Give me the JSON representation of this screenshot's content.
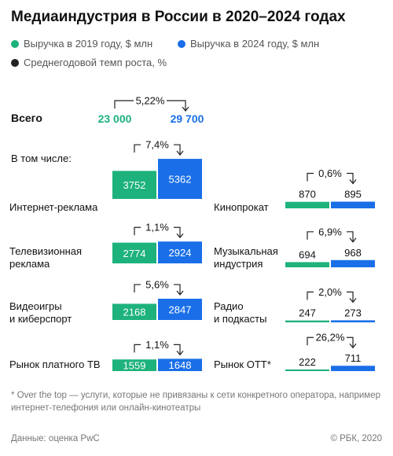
{
  "chart_data": {
    "type": "paired-bar",
    "title": "Медиаиндустрия в России в 2020–2024 годах",
    "subheading": "В том числе:",
    "categories": [
      "Интернет-реклама",
      "Телевизионная\nреклама",
      "Видеоигры\nи киберспорт",
      "Рынок платного ТВ",
      "Кинопрокат",
      "Музыкальная\nиндустрия",
      "Радио\nи подкасты",
      "Рынок OTT*"
    ],
    "series": [
      {
        "name": "Выручка в 2019 году, $ млн",
        "color": "#1db27c",
        "values": [
          3752,
          2774,
          2168,
          1559,
          870,
          694,
          247,
          222
        ]
      },
      {
        "name": "Выручка в 2024 году, $ млн",
        "color": "#1a6fe8",
        "values": [
          5362,
          2924,
          2847,
          1648,
          895,
          968,
          273,
          711
        ]
      }
    ],
    "growth": {
      "name": "Среднегодовой темп роста, %",
      "color": "#222222",
      "values": [
        7.4,
        1.1,
        5.6,
        1.1,
        0.6,
        6.9,
        2.0,
        26.2
      ],
      "value_labels": [
        "7,4%",
        "1,1%",
        "5,6%",
        "1,1%",
        "0,6%",
        "6,9%",
        "2,0%",
        "26,2%"
      ]
    },
    "total": {
      "label": "Всего",
      "values": [
        23000,
        29700
      ],
      "value_labels": [
        "23 000",
        "29 700"
      ],
      "growth": 5.22,
      "growth_label": "5,22%"
    },
    "footnote": "* Over the top — услуги, которые не привязаны к сети конкретного оператора, например интернет-телефония или онлайн-кинотеатры",
    "source": "Данные: оценка PwC",
    "credit": "© РБК, 2020"
  }
}
